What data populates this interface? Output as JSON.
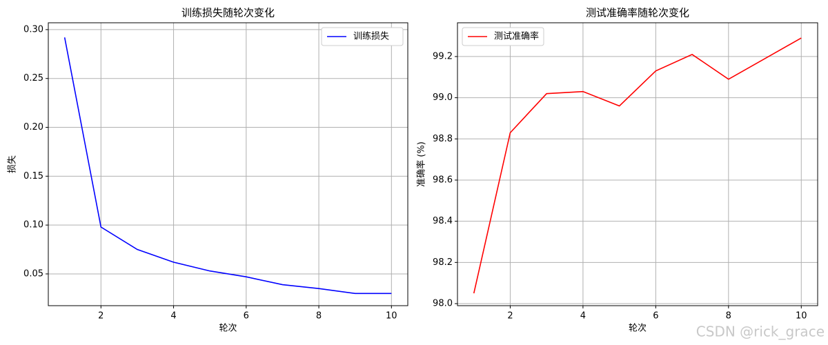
{
  "chart_data": [
    {
      "type": "line",
      "title": "训练损失随轮次变化",
      "xlabel": "轮次",
      "ylabel": "损失",
      "x": [
        1,
        2,
        3,
        4,
        5,
        6,
        7,
        8,
        9,
        10
      ],
      "series": [
        {
          "name": "训练损失",
          "color": "#0000ff",
          "values": [
            0.292,
            0.098,
            0.075,
            0.062,
            0.053,
            0.047,
            0.039,
            0.035,
            0.03,
            0.03
          ]
        }
      ],
      "xlim": [
        0.55,
        10.45
      ],
      "xticks": [
        2,
        4,
        6,
        8,
        10
      ],
      "ylim": [
        0.0175,
        0.307
      ],
      "yticks": [
        {
          "value": 0.05,
          "label": "0.05"
        },
        {
          "value": 0.1,
          "label": "0.10"
        },
        {
          "value": 0.15,
          "label": "0.15"
        },
        {
          "value": 0.2,
          "label": "0.20"
        },
        {
          "value": 0.25,
          "label": "0.25"
        },
        {
          "value": 0.3,
          "label": "0.30"
        }
      ],
      "grid": true,
      "legend": "upper right"
    },
    {
      "type": "line",
      "title": "测试准确率随轮次变化",
      "xlabel": "轮次",
      "ylabel": "准确率 (%)",
      "x": [
        1,
        2,
        3,
        4,
        5,
        6,
        7,
        8,
        9,
        10
      ],
      "series": [
        {
          "name": "测试准确率",
          "color": "#ff0000",
          "values": [
            98.05,
            98.83,
            99.02,
            99.03,
            98.96,
            99.13,
            99.21,
            99.09,
            99.19,
            99.29
          ]
        }
      ],
      "xlim": [
        0.55,
        10.45
      ],
      "xticks": [
        2,
        4,
        6,
        8,
        10
      ],
      "ylim": [
        97.99,
        99.364
      ],
      "yticks": [
        {
          "value": 98.0,
          "label": "98.0"
        },
        {
          "value": 98.2,
          "label": "98.2"
        },
        {
          "value": 98.4,
          "label": "98.4"
        },
        {
          "value": 98.6,
          "label": "98.6"
        },
        {
          "value": 98.8,
          "label": "98.8"
        },
        {
          "value": 99.0,
          "label": "99.0"
        },
        {
          "value": 99.2,
          "label": "99.2"
        }
      ],
      "grid": true,
      "legend": "upper left"
    }
  ],
  "watermark": "CSDN @rick_grace"
}
